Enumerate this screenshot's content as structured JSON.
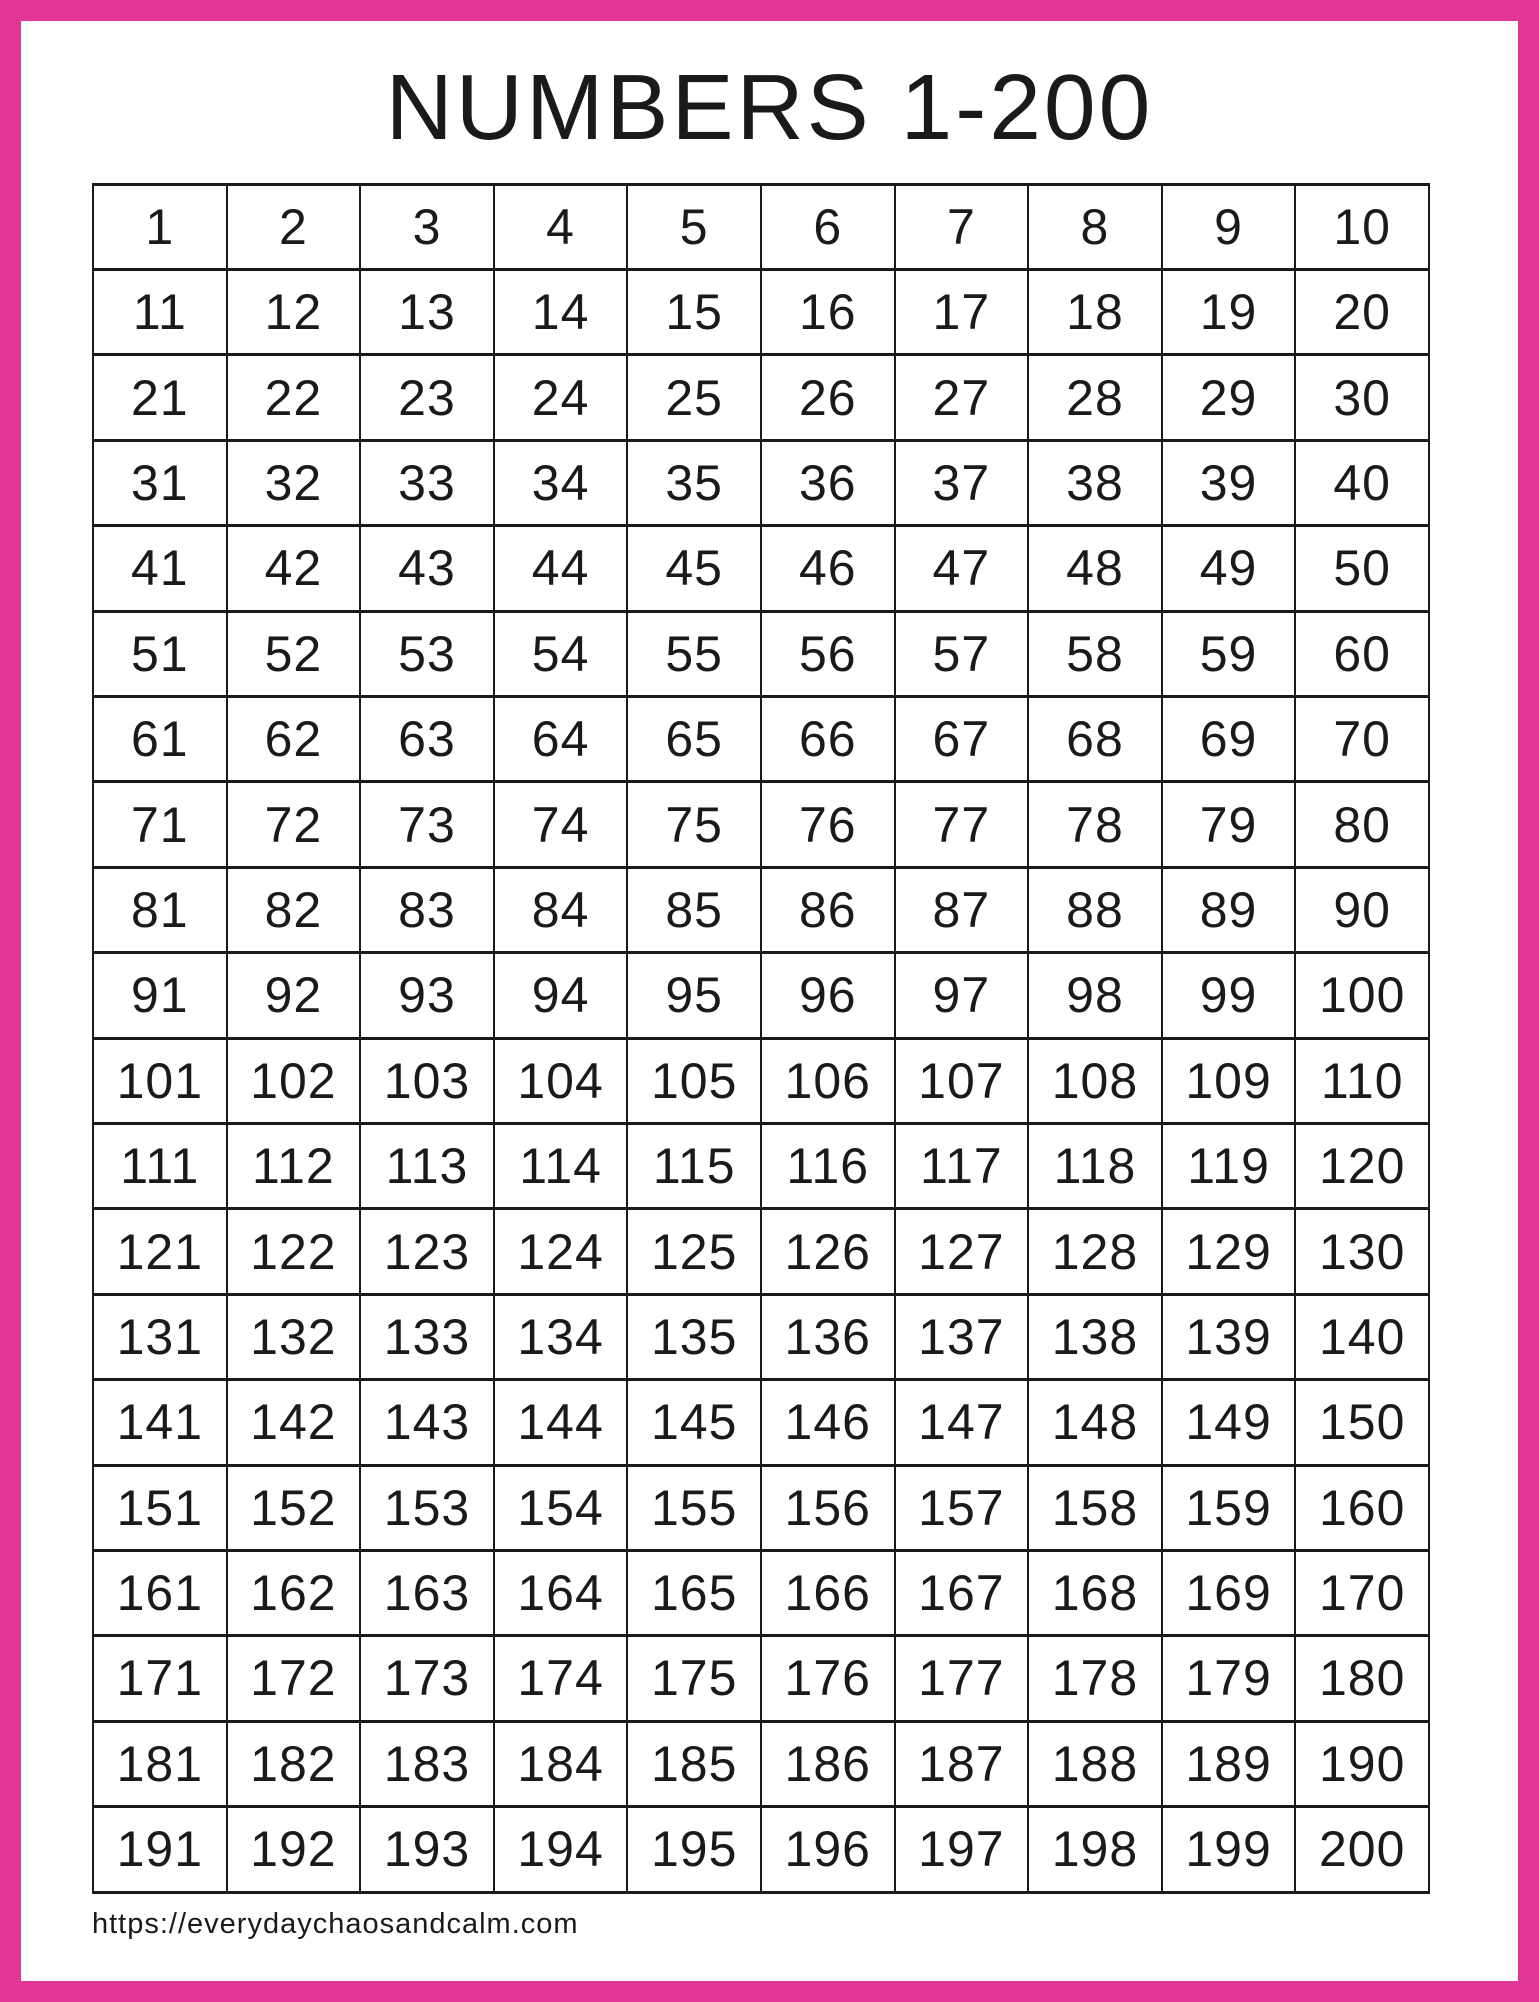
{
  "title": "NUMBERS 1-200",
  "footer": {
    "url": "https://everydaychaosandcalm.com"
  },
  "colors": {
    "frame": "#e23695",
    "grid_line": "#1a1a1a",
    "text": "#1a1a1a",
    "background": "#ffffff"
  },
  "grid": {
    "columns": 10,
    "rows": [
      [
        1,
        2,
        3,
        4,
        5,
        6,
        7,
        8,
        9,
        10
      ],
      [
        11,
        12,
        13,
        14,
        15,
        16,
        17,
        18,
        19,
        20
      ],
      [
        21,
        22,
        23,
        24,
        25,
        26,
        27,
        28,
        29,
        30
      ],
      [
        31,
        32,
        33,
        34,
        35,
        36,
        37,
        38,
        39,
        40
      ],
      [
        41,
        42,
        43,
        44,
        45,
        46,
        47,
        48,
        49,
        50
      ],
      [
        51,
        52,
        53,
        54,
        55,
        56,
        57,
        58,
        59,
        60
      ],
      [
        61,
        62,
        63,
        64,
        65,
        66,
        67,
        68,
        69,
        70
      ],
      [
        71,
        72,
        73,
        74,
        75,
        76,
        77,
        78,
        79,
        80
      ],
      [
        81,
        82,
        83,
        84,
        85,
        86,
        87,
        88,
        89,
        90
      ],
      [
        91,
        92,
        93,
        94,
        95,
        96,
        97,
        98,
        99,
        100
      ],
      [
        101,
        102,
        103,
        104,
        105,
        106,
        107,
        108,
        109,
        110
      ],
      [
        111,
        112,
        113,
        114,
        115,
        116,
        117,
        118,
        119,
        120
      ],
      [
        121,
        122,
        123,
        124,
        125,
        126,
        127,
        128,
        129,
        130
      ],
      [
        131,
        132,
        133,
        134,
        135,
        136,
        137,
        138,
        139,
        140
      ],
      [
        141,
        142,
        143,
        144,
        145,
        146,
        147,
        148,
        149,
        150
      ],
      [
        151,
        152,
        153,
        154,
        155,
        156,
        157,
        158,
        159,
        160
      ],
      [
        161,
        162,
        163,
        164,
        165,
        166,
        167,
        168,
        169,
        170
      ],
      [
        171,
        172,
        173,
        174,
        175,
        176,
        177,
        178,
        179,
        180
      ],
      [
        181,
        182,
        183,
        184,
        185,
        186,
        187,
        188,
        189,
        190
      ],
      [
        191,
        192,
        193,
        194,
        195,
        196,
        197,
        198,
        199,
        200
      ]
    ]
  }
}
